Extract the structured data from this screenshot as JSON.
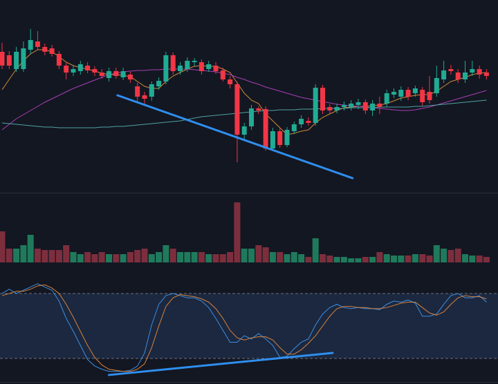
{
  "chart_data": [
    {
      "type": "candlestick",
      "ylim": [
        0,
        280
      ],
      "up_color": "#22ab94",
      "down_color": "#f23645",
      "open": [
        205,
        200,
        180,
        180,
        208,
        220,
        212,
        210,
        202,
        185,
        175,
        177,
        185,
        180,
        175,
        167,
        177,
        168,
        172,
        155,
        142,
        140,
        155,
        162,
        200,
        177,
        180,
        190,
        190,
        180,
        185,
        178,
        165,
        158,
        85,
        97,
        123,
        122,
        65,
        90,
        70,
        90,
        100,
        105,
        102,
        153,
        125,
        120,
        125,
        125,
        128,
        132,
        120,
        130,
        130,
        143,
        140,
        150,
        145,
        150,
        147,
        145,
        165,
        180,
        175,
        165,
        175,
        180,
        175
      ],
      "high": [
        218,
        206,
        212,
        220,
        238,
        235,
        217,
        215,
        206,
        190,
        186,
        192,
        190,
        184,
        180,
        182,
        182,
        182,
        176,
        160,
        147,
        162,
        168,
        205,
        204,
        190,
        197,
        196,
        194,
        192,
        190,
        182,
        170,
        162,
        102,
        128,
        126,
        126,
        95,
        94,
        96,
        104,
        113,
        110,
        158,
        157,
        129,
        130,
        133,
        135,
        137,
        136,
        135,
        140,
        150,
        152,
        155,
        154,
        156,
        154,
        170,
        185,
        192,
        186,
        180,
        192,
        192,
        185,
        180
      ],
      "low": [
        180,
        180,
        176,
        176,
        202,
        208,
        200,
        198,
        180,
        165,
        170,
        172,
        174,
        170,
        166,
        162,
        166,
        164,
        160,
        132,
        130,
        134,
        150,
        158,
        172,
        172,
        176,
        184,
        172,
        176,
        173,
        162,
        152,
        45,
        78,
        92,
        115,
        62,
        62,
        66,
        67,
        86,
        95,
        98,
        98,
        115,
        115,
        116,
        120,
        120,
        122,
        115,
        112,
        115,
        125,
        138,
        134,
        135,
        140,
        127,
        130,
        140,
        160,
        172,
        160,
        160,
        170,
        166,
        165
      ],
      "close": [
        185,
        185,
        205,
        210,
        222,
        212,
        205,
        202,
        185,
        175,
        180,
        187,
        178,
        175,
        170,
        177,
        170,
        177,
        165,
        140,
        137,
        158,
        163,
        200,
        177,
        185,
        192,
        192,
        177,
        187,
        177,
        165,
        158,
        85,
        97,
        123,
        120,
        65,
        90,
        70,
        92,
        100,
        108,
        102,
        153,
        120,
        120,
        125,
        128,
        130,
        132,
        120,
        130,
        125,
        145,
        147,
        150,
        140,
        152,
        132,
        135,
        167,
        178,
        177,
        165,
        175,
        180,
        172,
        170
      ],
      "series": [
        {
          "color": "#d08a3a",
          "values": [
            150,
            165,
            180,
            192,
            202,
            208,
            208,
            205,
            198,
            190,
            185,
            182,
            180,
            177,
            174,
            172,
            172,
            171,
            169,
            162,
            155,
            152,
            152,
            162,
            170,
            175,
            180,
            184,
            185,
            184,
            184,
            180,
            175,
            160,
            145,
            135,
            130,
            115,
            105,
            95,
            85,
            87,
            90,
            92,
            102,
            110,
            115,
            120,
            124,
            125,
            126,
            126,
            127,
            128,
            130,
            134,
            138,
            140,
            142,
            143,
            143,
            148,
            155,
            162,
            165,
            168,
            172,
            174,
            175
          ]
        },
        {
          "color": "#a93fb5",
          "values": [
            92,
            100,
            108,
            114,
            120,
            126,
            132,
            137,
            142,
            147,
            152,
            156,
            160,
            164,
            168,
            172,
            174,
            176,
            177,
            178,
            178,
            179,
            179,
            180,
            180,
            180,
            180,
            179,
            178,
            177,
            176,
            174,
            172,
            168,
            165,
            161,
            158,
            154,
            151,
            148,
            145,
            142,
            139,
            137,
            135,
            133,
            131,
            129,
            128,
            127,
            126,
            125,
            124,
            123,
            122,
            121,
            120,
            120,
            121,
            123,
            125,
            128,
            131,
            134,
            137,
            140,
            143,
            146,
            149
          ]
        },
        {
          "color": "#4fa3a5",
          "values": [
            102,
            101,
            100,
            99,
            98,
            97,
            96,
            96,
            95,
            95,
            95,
            95,
            95,
            95,
            96,
            96,
            97,
            97,
            98,
            99,
            100,
            101,
            102,
            103,
            104,
            105,
            107,
            109,
            111,
            112,
            113,
            114,
            115,
            116,
            117,
            118,
            119,
            120,
            120,
            121,
            121,
            121,
            122,
            122,
            122,
            123,
            123,
            123,
            123,
            124,
            124,
            124,
            124,
            125,
            125,
            125,
            125,
            125,
            126,
            126,
            127,
            128,
            129,
            130,
            131,
            132,
            133,
            134,
            135
          ]
        }
      ],
      "trendlines": [
        {
          "color": "#2f8fef",
          "x": [
            16.2,
            49.2
          ],
          "y": [
            142,
            22
          ]
        }
      ]
    },
    {
      "type": "volume",
      "ylim": [
        0,
        100
      ],
      "up_color": "#1f7a5c",
      "down_color": "#7d2e3d",
      "values": [
        45,
        20,
        20,
        25,
        40,
        20,
        18,
        18,
        18,
        25,
        15,
        12,
        15,
        12,
        15,
        12,
        12,
        12,
        15,
        18,
        20,
        12,
        15,
        25,
        20,
        15,
        15,
        15,
        15,
        12,
        12,
        12,
        15,
        87,
        20,
        20,
        25,
        22,
        15,
        15,
        12,
        15,
        12,
        8,
        35,
        12,
        10,
        8,
        8,
        6,
        6,
        8,
        8,
        15,
        12,
        10,
        10,
        10,
        12,
        12,
        10,
        25,
        20,
        18,
        20,
        12,
        10,
        10,
        8
      ]
    },
    {
      "type": "line",
      "ylim": [
        0,
        100
      ],
      "bands": [
        20,
        80
      ],
      "band_color": "#1b2840",
      "series": [
        {
          "color": "#3d8fe0",
          "values": [
            80,
            84,
            80,
            83,
            86,
            89,
            86,
            83,
            73,
            57,
            45,
            32,
            19,
            13,
            10,
            8,
            8,
            8,
            9,
            13,
            25,
            51,
            70,
            78,
            80,
            78,
            76,
            76,
            73,
            67,
            57,
            46,
            35,
            35,
            41,
            38,
            43,
            38,
            32,
            21,
            22,
            29,
            35,
            38,
            51,
            61,
            67,
            70,
            67,
            66,
            67,
            66,
            66,
            65,
            70,
            73,
            72,
            74,
            71,
            59,
            59,
            61,
            70,
            78,
            80,
            76,
            76,
            78,
            72
          ]
        },
        {
          "color": "#d9823a",
          "values": [
            78,
            80,
            82,
            82,
            84,
            87,
            88,
            85,
            80,
            70,
            58,
            45,
            32,
            21,
            14,
            10,
            9,
            8,
            8,
            10,
            15,
            30,
            50,
            68,
            76,
            79,
            78,
            77,
            75,
            72,
            66,
            57,
            46,
            39,
            37,
            39,
            40,
            40,
            37,
            30,
            24,
            24,
            28,
            34,
            41,
            50,
            59,
            66,
            68,
            68,
            67,
            67,
            66,
            66,
            67,
            69,
            71,
            72,
            72,
            67,
            62,
            60,
            63,
            70,
            76,
            78,
            77,
            77,
            75
          ]
        }
      ],
      "trendlines": [
        {
          "color": "#2f8fef",
          "x": [
            15,
            46.4
          ],
          "y": [
            4.7,
            25.1
          ]
        }
      ]
    }
  ]
}
